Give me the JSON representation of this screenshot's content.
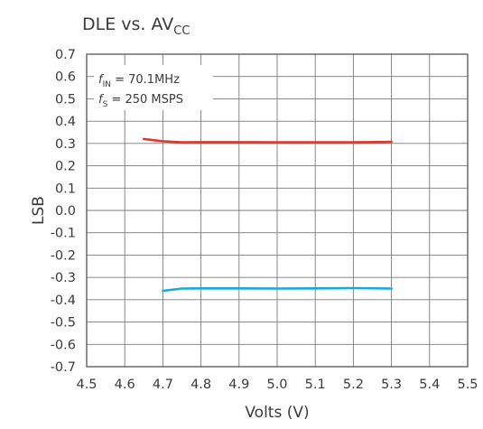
{
  "chart_data": {
    "type": "line",
    "title": "DLE vs. AV",
    "title_subscript": "CC",
    "xlabel": "Volts (V)",
    "ylabel": "LSB",
    "xlim": [
      4.5,
      5.5
    ],
    "ylim": [
      -0.7,
      0.7
    ],
    "x_ticks": [
      "4.5",
      "4.6",
      "4.7",
      "4.8",
      "4.9",
      "5.0",
      "5.1",
      "5.2",
      "5.3",
      "5.4",
      "5.5"
    ],
    "y_ticks": [
      "0.7",
      "0.6",
      "0.5",
      "0.4",
      "0.3",
      "0.2",
      "0.1",
      "0.0",
      "-0.1",
      "-0.2",
      "-0.3",
      "-0.4",
      "-0.5",
      "-0.6",
      "-0.7"
    ],
    "grid": true,
    "annotations": [
      {
        "prefix": "f",
        "subscript": "IN",
        "text": " = 70.1MHz"
      },
      {
        "prefix": "f",
        "subscript": "S",
        "text": " = 250 MSPS"
      }
    ],
    "series": [
      {
        "color": "#e0392b",
        "x": [
          4.65,
          4.7,
          4.75,
          4.8,
          4.9,
          5.0,
          5.1,
          5.2,
          5.3
        ],
        "y": [
          0.32,
          0.31,
          0.305,
          0.306,
          0.306,
          0.305,
          0.305,
          0.305,
          0.307
        ]
      },
      {
        "color": "#1aa9d6",
        "x": [
          4.7,
          4.75,
          4.8,
          4.9,
          5.0,
          5.1,
          5.2,
          5.3
        ],
        "y": [
          -0.36,
          -0.35,
          -0.349,
          -0.349,
          -0.35,
          -0.349,
          -0.348,
          -0.35
        ]
      }
    ]
  }
}
